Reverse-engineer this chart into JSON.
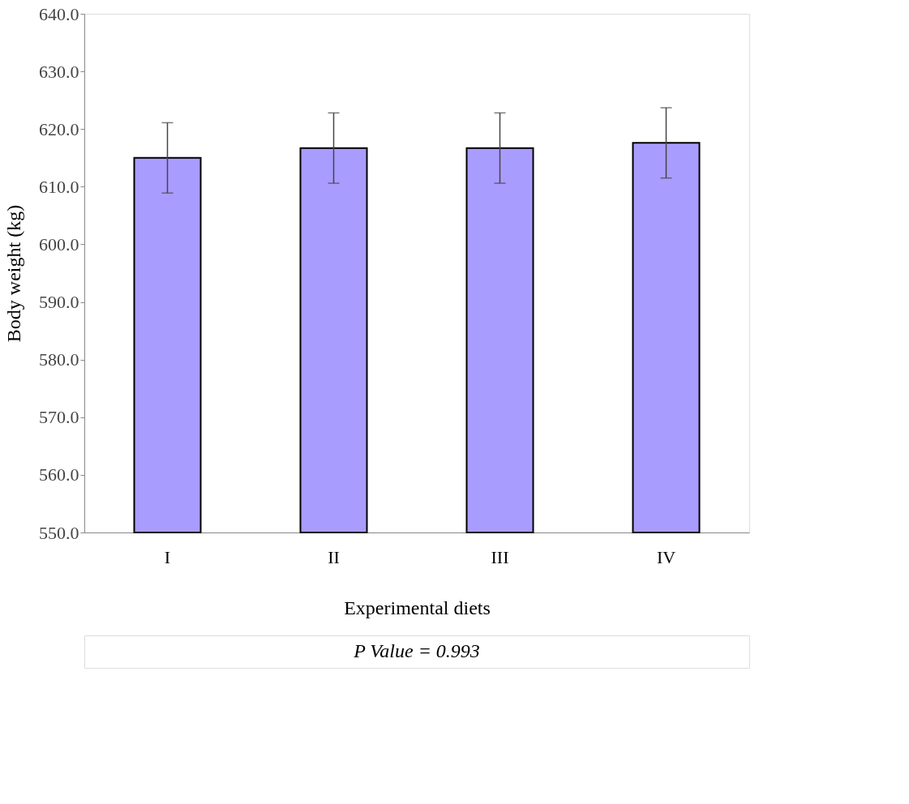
{
  "chart_data": {
    "type": "bar",
    "xlabel": "Experimental diets",
    "ylabel": "Body weight  (kg)",
    "categories": [
      "I",
      "II",
      "III",
      "IV"
    ],
    "series": [
      {
        "color": "#a99cff",
        "values": [
          615.0,
          616.7,
          616.7,
          617.6
        ],
        "errors": [
          6.1,
          6.1,
          6.1,
          6.1
        ]
      }
    ],
    "ylim": [
      550,
      640
    ],
    "yticks": [
      {
        "value": 550,
        "label": "550.0"
      },
      {
        "value": 560,
        "label": "560.0"
      },
      {
        "value": 570,
        "label": "570.0"
      },
      {
        "value": 580,
        "label": "580.0"
      },
      {
        "value": 590,
        "label": "590.0"
      },
      {
        "value": 600,
        "label": "600.0"
      },
      {
        "value": 610,
        "label": "610.0"
      },
      {
        "value": 620,
        "label": "620.0"
      },
      {
        "value": 630,
        "label": "630.0"
      },
      {
        "value": 640,
        "label": "640.0"
      }
    ],
    "grid": false,
    "annotations": [
      "P Value = 0.993"
    ]
  }
}
